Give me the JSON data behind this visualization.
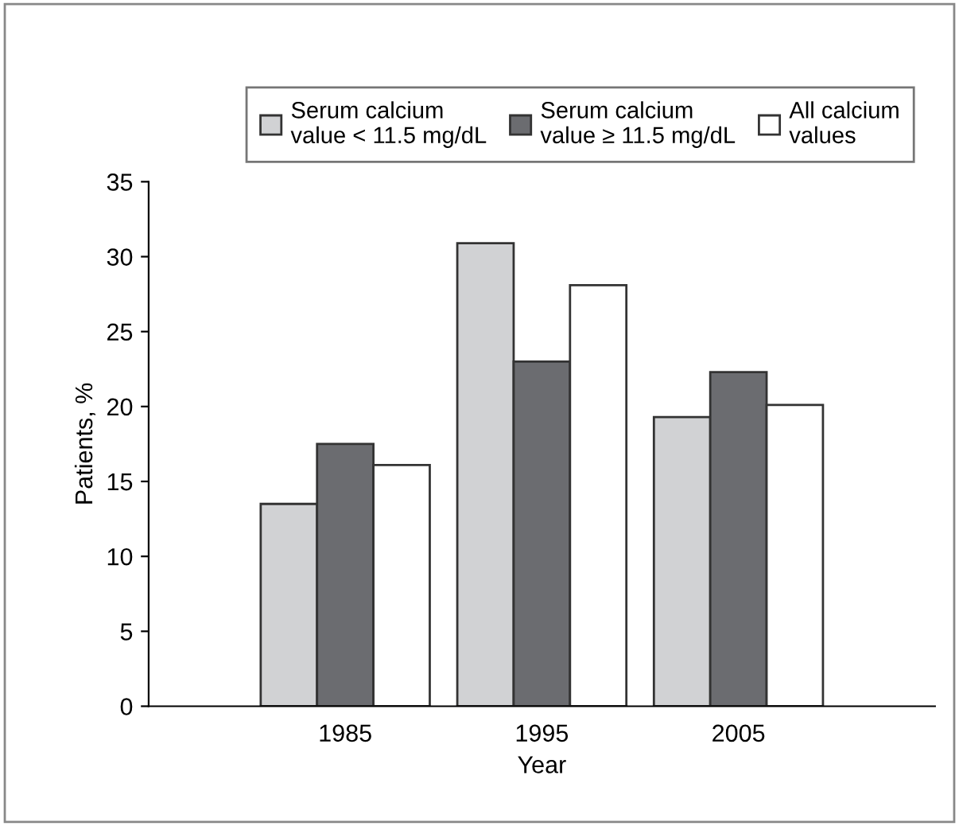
{
  "chart_data": {
    "type": "bar",
    "xlabel": "Year",
    "ylabel": "Patients, %",
    "categories": [
      "1985",
      "1995",
      "2005"
    ],
    "series": [
      {
        "name": "Serum calcium\nvalue < 11.5 mg/dL",
        "color": "#d1d2d4",
        "values": [
          13.5,
          30.9,
          19.3
        ]
      },
      {
        "name": "Serum calcium\nvalue ≥ 11.5 mg/dL",
        "color": "#6b6c70",
        "values": [
          17.5,
          23.0,
          22.3
        ]
      },
      {
        "name": "All calcium\nvalues",
        "color": "#ffffff",
        "values": [
          16.1,
          28.1,
          20.1
        ]
      }
    ],
    "ylim": [
      0,
      35
    ],
    "yticks": [
      0,
      5,
      10,
      15,
      20,
      25,
      30,
      35
    ],
    "grid": false,
    "legend": "top"
  }
}
